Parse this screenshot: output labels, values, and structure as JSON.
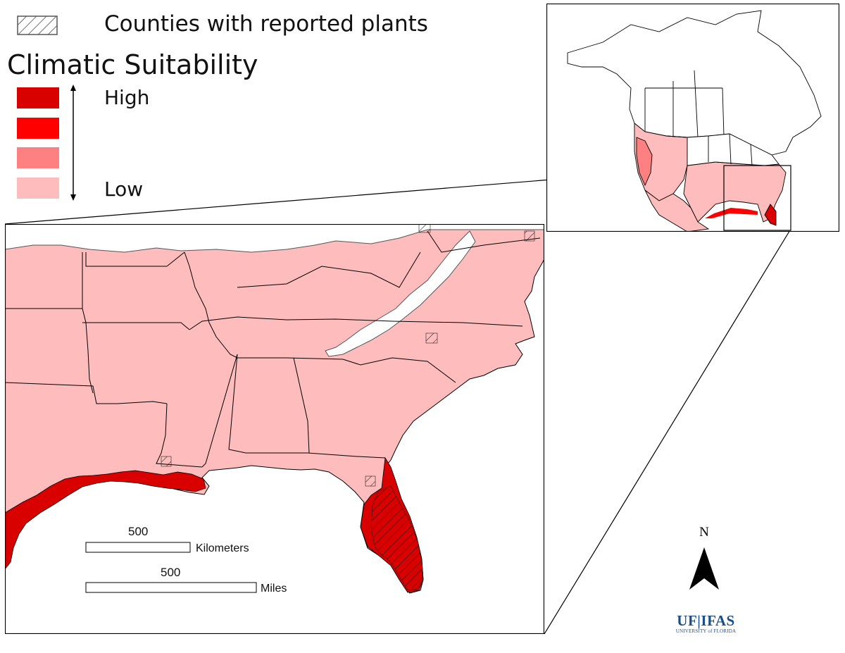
{
  "legend": {
    "counties_label": "Counties with reported plants",
    "title": "Climatic Suitability",
    "high_label": "High",
    "low_label": "Low",
    "classes": [
      {
        "level": 4,
        "color": "#d90000"
      },
      {
        "level": 3,
        "color": "#ff0000"
      },
      {
        "level": 2,
        "color": "#ff8080"
      },
      {
        "level": 1,
        "color": "#ffbcbc"
      }
    ]
  },
  "scale": {
    "km_value": "500",
    "km_unit": "Kilometers",
    "mi_value": "500",
    "mi_unit": "Miles"
  },
  "north_label": "N",
  "logo": {
    "main": "UF|IFAS",
    "sub": "UNIVERSITY of FLORIDA"
  },
  "colors": {
    "high": "#d90000",
    "low": "#ffbcbc",
    "border": "#000000",
    "highland": "#ffffff"
  }
}
